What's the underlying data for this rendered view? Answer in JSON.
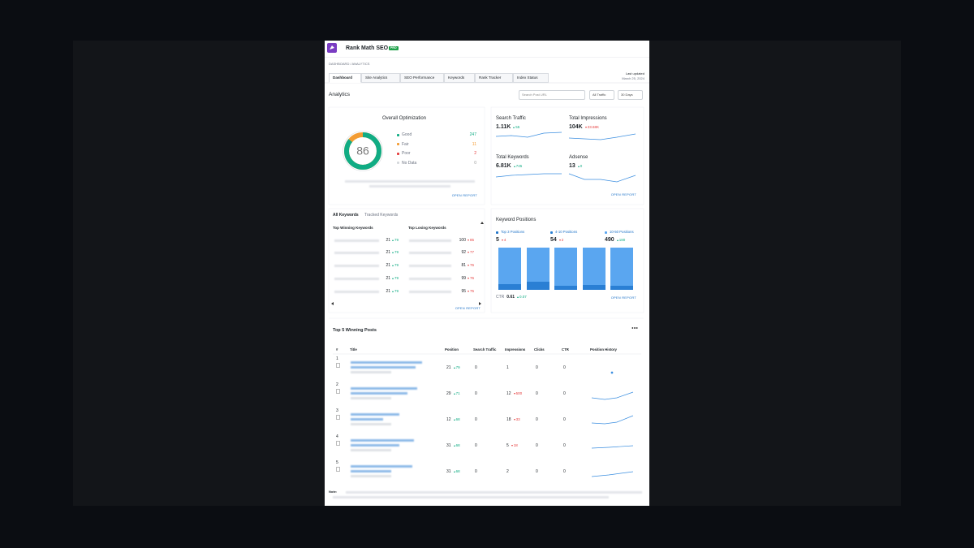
{
  "header": {
    "title": "Rank Math SEO",
    "badge": "PRO",
    "breadcrumb": "DASHBOARD / ANALYTICS",
    "last_updated_label": "Last updated",
    "last_updated": "March 25, 2024"
  },
  "tabs": [
    "Dashboard",
    "Site Analytics",
    "SEO Performance",
    "Keywords",
    "Rank Tracker",
    "Index Status"
  ],
  "toolbar": {
    "heading": "Analytics",
    "search_placeholder": "Search Post URL",
    "traffic_filter": "All Traffic",
    "range_filter": "30 Days"
  },
  "optimization": {
    "title": "Overall Optimization",
    "score": 86,
    "legend": [
      {
        "label": "Good",
        "value": 247,
        "color": "#10ac84"
      },
      {
        "label": "Fair",
        "value": 11,
        "color": "#f39c33"
      },
      {
        "label": "Poor",
        "value": 2,
        "color": "#e53e3e"
      },
      {
        "label": "No Data",
        "value": 0,
        "color": "#d5d8dc"
      }
    ],
    "link": "OPEN REPORT"
  },
  "stats": {
    "items": [
      {
        "label": "Search Traffic",
        "value": "1.11K",
        "change": "55",
        "direction": "up"
      },
      {
        "label": "Total Impressions",
        "value": "104K",
        "change": "23.68K",
        "direction": "down"
      },
      {
        "label": "Total Keywords",
        "value": "6.81K",
        "change": "745",
        "direction": "up"
      },
      {
        "label": "Adsense",
        "value": "13",
        "change": "0",
        "direction": "up"
      }
    ],
    "link": "OPEN REPORT"
  },
  "keywords": {
    "tabs": [
      "All Keywords",
      "Tracked Keywords"
    ],
    "winning_title": "Top Winning Keywords",
    "losing_title": "Top Losing Keywords",
    "winning": [
      {
        "position": 21,
        "change": 79
      },
      {
        "position": 21,
        "change": 79
      },
      {
        "position": 21,
        "change": 79
      },
      {
        "position": 21,
        "change": 79
      },
      {
        "position": 21,
        "change": 79
      }
    ],
    "losing": [
      {
        "position": 100,
        "change": 85
      },
      {
        "position": 92,
        "change": 77
      },
      {
        "position": 81,
        "change": 76
      },
      {
        "position": 99,
        "change": 76
      },
      {
        "position": 95,
        "change": 75
      }
    ],
    "link": "OPEN REPORT"
  },
  "positions": {
    "title": "Keyword Positions",
    "groups": [
      {
        "label": "Top 3 Positions",
        "value": 5,
        "change": 4,
        "direction": "down",
        "color": "#1f73c8"
      },
      {
        "label": "4-10 Positions",
        "value": 54,
        "change": 2,
        "direction": "down",
        "color": "#2a7fd4"
      },
      {
        "label": "10-50 Positions",
        "value": 490,
        "change": 180,
        "direction": "up",
        "color": "#5aa6f0"
      }
    ],
    "ctr_label": "CTR",
    "ctr": 0.61,
    "ctr_change": 0.07,
    "link": "OPEN REPORT"
  },
  "posts": {
    "title": "Top 5 Winning Posts",
    "columns": [
      "#",
      "Title",
      "Position",
      "Search Traffic",
      "Impressions",
      "Clicks",
      "CTR",
      "Position History"
    ],
    "rows": [
      {
        "rank": 1,
        "position": 21,
        "position_change": 79,
        "traffic": 0,
        "impressions": 1,
        "clicks": 0,
        "ctr": 0
      },
      {
        "rank": 2,
        "position": 29,
        "position_change": 71,
        "traffic": 0,
        "impressions": 12,
        "impressions_change": 500,
        "clicks": 0,
        "ctr": 0
      },
      {
        "rank": 3,
        "position": 12,
        "position_change": 68,
        "traffic": 0,
        "impressions": 18,
        "impressions_change": 33,
        "clicks": 0,
        "ctr": 0
      },
      {
        "rank": 4,
        "position": 31,
        "position_change": 68,
        "traffic": 0,
        "impressions": 5,
        "impressions_change": 18,
        "clicks": 0,
        "ctr": 0
      },
      {
        "rank": 5,
        "position": 31,
        "position_change": 68,
        "traffic": 0,
        "impressions": 2,
        "clicks": 0,
        "ctr": 0
      }
    ]
  },
  "note": {
    "label": "Note:"
  }
}
